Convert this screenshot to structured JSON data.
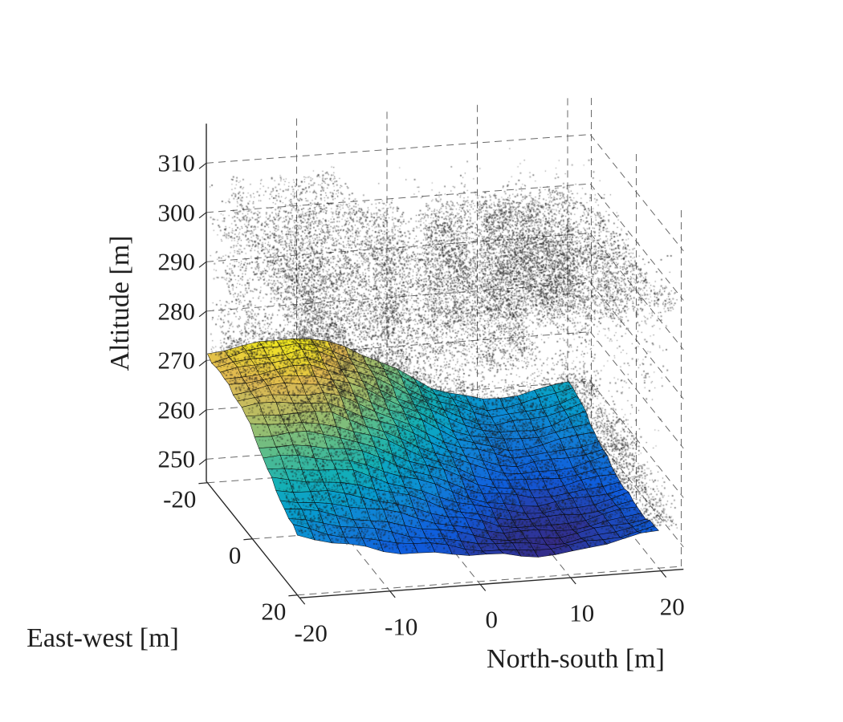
{
  "figure": {
    "background": "#ffffff",
    "style_note": "MATLAB-style 3D figure: terrain surface with LiDAR vegetation point cloud"
  },
  "chart_data": {
    "type": "3d-surface-with-scatter",
    "title": "",
    "xlabel": "North-south [m]",
    "ylabel": "East-west [m]",
    "zlabel": "Altitude [m]",
    "x_ticks": [
      -20,
      -10,
      0,
      10,
      20
    ],
    "y_ticks": [
      -20,
      0,
      20
    ],
    "z_ticks": [
      250,
      260,
      270,
      280,
      290,
      300,
      310
    ],
    "xlim": [
      -20,
      22.5
    ],
    "ylim": [
      -20.5,
      21
    ],
    "zlim": [
      245.5,
      318
    ],
    "grid": true,
    "grid_style": "dashed",
    "view": {
      "azimuth_deg": -37.5,
      "elevation_deg": 30
    },
    "surface": {
      "description": "Digital terrain model surface, parula colormap, black mesh edges, cells ~2 m",
      "colormap": "parula",
      "color_limits": [
        249.6,
        274.2
      ],
      "ns": [
        -20,
        -15,
        -10,
        -5,
        0,
        5,
        10,
        15,
        20
      ],
      "ew": [
        -20,
        -15,
        -10,
        -5,
        0,
        5,
        10,
        15,
        20
      ],
      "altitude": [
        [
          271.5,
          273.0,
          274.0,
          271.0,
          266.5,
          261.5,
          258.0,
          258.5,
          261.0
        ],
        [
          271.0,
          272.5,
          273.0,
          269.5,
          265.0,
          260.0,
          256.5,
          257.0,
          259.5
        ],
        [
          270.5,
          271.5,
          271.5,
          267.5,
          263.0,
          258.0,
          255.0,
          255.5,
          257.5
        ],
        [
          269.5,
          270.0,
          269.0,
          265.0,
          260.5,
          256.0,
          253.5,
          254.0,
          255.5
        ],
        [
          267.5,
          267.5,
          266.0,
          262.0,
          258.0,
          254.0,
          252.0,
          252.5,
          254.0
        ],
        [
          264.5,
          264.0,
          262.5,
          259.0,
          255.5,
          252.0,
          250.8,
          251.3,
          253.0
        ],
        [
          261.5,
          260.5,
          259.0,
          256.0,
          253.0,
          250.8,
          250.0,
          250.8,
          252.5
        ],
        [
          259.5,
          257.5,
          255.5,
          253.5,
          251.5,
          250.0,
          249.8,
          250.8,
          252.5
        ],
        [
          257.5,
          255.0,
          253.0,
          252.0,
          250.8,
          250.0,
          250.0,
          251.5,
          253.0
        ]
      ]
    },
    "point_cloud": {
      "description": "LiDAR vegetation returns (dark speckle cloud) above the terrain surface",
      "color": "#1c1c1c",
      "marker_size_px": 1.5,
      "approx_point_count": 20000,
      "altitude_range": [
        248,
        311
      ],
      "canopy_layer_altitudes": [
        306.5,
        298.5,
        290,
        281,
        271.5,
        260.5
      ],
      "extent_ns": [
        -20,
        22
      ],
      "extent_ew": [
        -20,
        20.5
      ]
    },
    "parula_stops": [
      "#352a87",
      "#0f5cdd",
      "#127dd8",
      "#079ccf",
      "#15b1b4",
      "#59bd8c",
      "#a5be6b",
      "#e1b952",
      "#f9fb0e"
    ]
  }
}
